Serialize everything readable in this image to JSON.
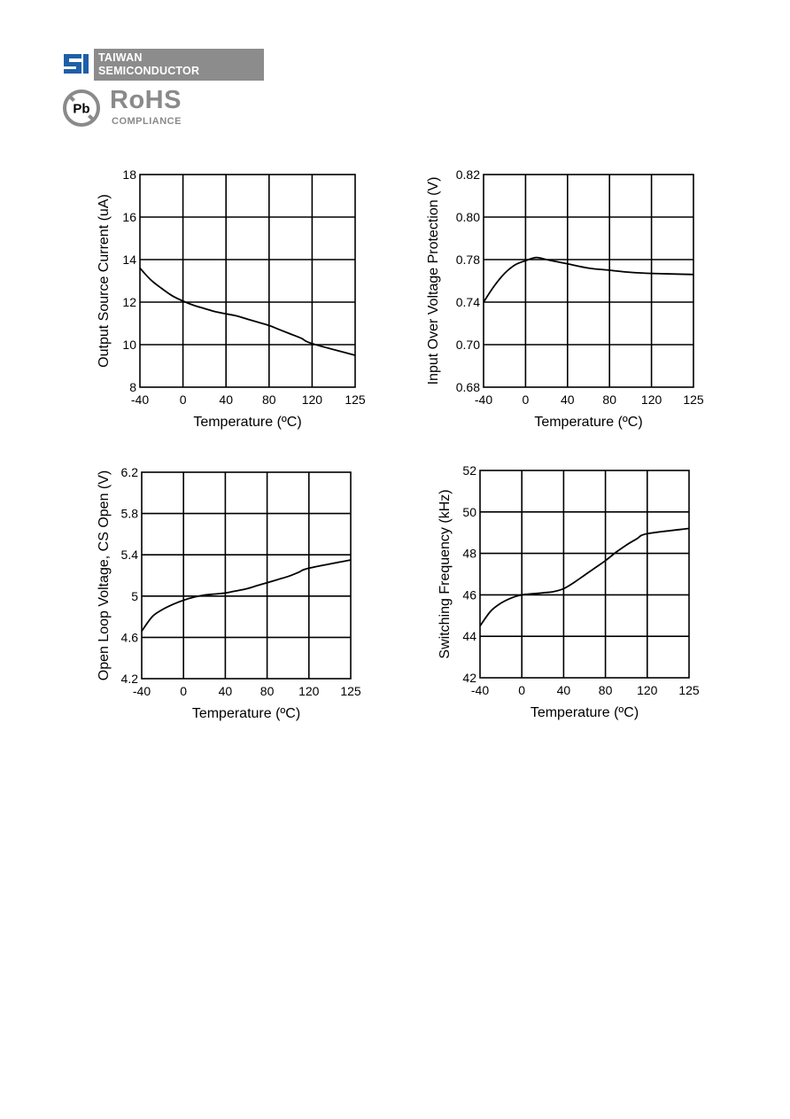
{
  "header": {
    "company_line1": "TAIWAN",
    "company_line2": "SEMICONDUCTOR",
    "logo_icon": "ts-logo-icon",
    "pb_symbol": "Pb",
    "rohs_title": "RoHS",
    "rohs_subtitle": "COMPLIANCE",
    "brand_color": "#1f5fa8",
    "gray_color": "#8c8c8c"
  },
  "chart_data": [
    {
      "type": "line",
      "title": "",
      "xlabel": "Temperature (ºC)",
      "ylabel": "Output Source Current (uA)",
      "xticks": [
        "-40",
        "0",
        "40",
        "80",
        "120",
        "125"
      ],
      "yticks": [
        "8",
        "10",
        "12",
        "14",
        "16",
        "18"
      ],
      "ylim": [
        8,
        18
      ],
      "grid": true,
      "x": [
        -40,
        -30,
        -20,
        -10,
        0,
        10,
        20,
        30,
        40,
        50,
        60,
        70,
        80,
        90,
        100,
        110,
        120,
        125
      ],
      "y": [
        13.6,
        13.05,
        12.65,
        12.3,
        12.05,
        11.85,
        11.7,
        11.55,
        11.45,
        11.35,
        11.2,
        11.05,
        10.9,
        10.7,
        10.5,
        10.3,
        10.05,
        9.5
      ]
    },
    {
      "type": "line",
      "title": "",
      "xlabel": "Temperature (ºC)",
      "ylabel": "Input Over Voltage Protection (V)",
      "xticks": [
        "-40",
        "0",
        "40",
        "80",
        "120",
        "125"
      ],
      "yticks": [
        "0.68",
        "0.70",
        "0.74",
        "0.78",
        "0.80",
        "0.82"
      ],
      "grid": true,
      "x": [
        -40,
        -30,
        -20,
        -10,
        0,
        10,
        20,
        30,
        40,
        60,
        80,
        100,
        120,
        125
      ],
      "y": [
        0.74,
        0.755,
        0.767,
        0.775,
        0.779,
        0.781,
        0.78,
        0.778,
        0.776,
        0.772,
        0.77,
        0.768,
        0.767,
        0.766
      ]
    },
    {
      "type": "line",
      "title": "",
      "xlabel": "Temperature (ºC)",
      "ylabel": "Open Loop Voltage, CS Open (V)",
      "xticks": [
        "-40",
        "0",
        "40",
        "80",
        "120",
        "125"
      ],
      "yticks": [
        "4.2",
        "4.6",
        "5",
        "5.4",
        "5.8",
        "6.2"
      ],
      "ylim": [
        4.2,
        6.2
      ],
      "grid": true,
      "x": [
        -40,
        -30,
        -20,
        -10,
        0,
        10,
        20,
        30,
        40,
        50,
        60,
        70,
        80,
        90,
        100,
        110,
        120,
        125
      ],
      "y": [
        4.66,
        4.8,
        4.87,
        4.92,
        4.96,
        4.99,
        5.01,
        5.02,
        5.03,
        5.05,
        5.07,
        5.1,
        5.13,
        5.16,
        5.19,
        5.23,
        5.27,
        5.35
      ]
    },
    {
      "type": "line",
      "title": "",
      "xlabel": "Temperature (ºC)",
      "ylabel": "Switching Frequency (kHz)",
      "xticks": [
        "-40",
        "0",
        "40",
        "80",
        "120",
        "125"
      ],
      "yticks": [
        "42",
        "44",
        "46",
        "48",
        "50",
        "52"
      ],
      "ylim": [
        42,
        52
      ],
      "grid": true,
      "x": [
        -40,
        -30,
        -20,
        -10,
        0,
        10,
        20,
        30,
        40,
        50,
        60,
        70,
        80,
        90,
        100,
        110,
        120,
        125
      ],
      "y": [
        44.5,
        45.2,
        45.6,
        45.85,
        46.0,
        46.05,
        46.1,
        46.15,
        46.3,
        46.6,
        46.95,
        47.3,
        47.65,
        48.05,
        48.4,
        48.7,
        48.95,
        49.2
      ]
    }
  ]
}
